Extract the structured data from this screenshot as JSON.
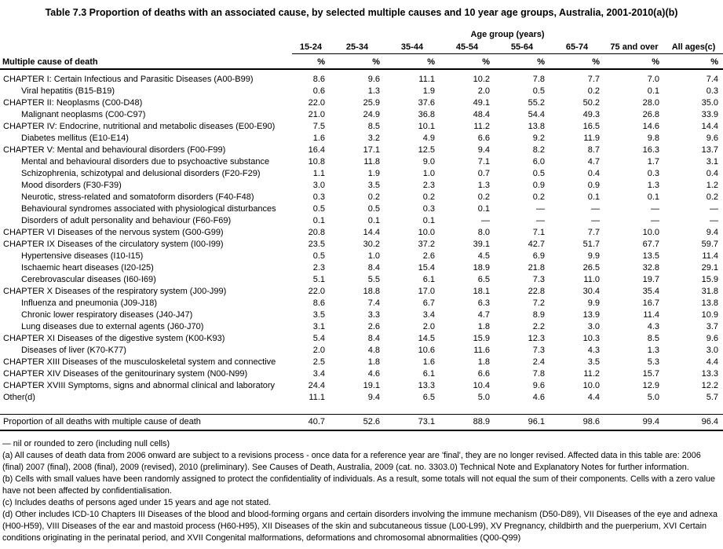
{
  "title": "Table 7.3 Proportion of deaths with an associated cause, by selected multiple causes and 10 year age groups, Australia, 2001-2010(a)(b)",
  "table": {
    "col_group_label": "Age group (years)",
    "row_header_label": "Multiple cause of death",
    "columns": [
      "15-24",
      "25-34",
      "35-44",
      "45-54",
      "55-64",
      "65-74",
      "75 and over",
      "All ages(c)"
    ],
    "unit_row": [
      "%",
      "%",
      "%",
      "%",
      "%",
      "%",
      "%",
      "%"
    ],
    "rows": [
      {
        "label": "CHAPTER I: Certain Infectious and Parasitic Diseases (A00-B99)",
        "indent": false,
        "values": [
          "8.6",
          "9.6",
          "11.1",
          "10.2",
          "7.8",
          "7.7",
          "7.0",
          "7.4"
        ]
      },
      {
        "label": "Viral hepatitis (B15-B19)",
        "indent": true,
        "values": [
          "0.6",
          "1.3",
          "1.9",
          "2.0",
          "0.5",
          "0.2",
          "0.1",
          "0.3"
        ]
      },
      {
        "label": "CHAPTER II: Neoplasms (C00-D48)",
        "indent": false,
        "values": [
          "22.0",
          "25.9",
          "37.6",
          "49.1",
          "55.2",
          "50.2",
          "28.0",
          "35.0"
        ]
      },
      {
        "label": "Malignant neoplasms (C00-C97)",
        "indent": true,
        "values": [
          "21.0",
          "24.9",
          "36.8",
          "48.4",
          "54.4",
          "49.3",
          "26.8",
          "33.9"
        ]
      },
      {
        "label": "CHAPTER IV: Endocrine, nutritional and metabolic diseases (E00-E90)",
        "indent": false,
        "values": [
          "7.5",
          "8.5",
          "10.1",
          "11.2",
          "13.8",
          "16.5",
          "14.6",
          "14.4"
        ]
      },
      {
        "label": "Diabetes mellitus (E10-E14)",
        "indent": true,
        "values": [
          "1.6",
          "3.2",
          "4.9",
          "6.6",
          "9.2",
          "11.9",
          "9.8",
          "9.6"
        ]
      },
      {
        "label": "CHAPTER V: Mental and behavioural disorders (F00-F99)",
        "indent": false,
        "values": [
          "16.4",
          "17.1",
          "12.5",
          "9.4",
          "8.2",
          "8.7",
          "16.3",
          "13.7"
        ]
      },
      {
        "label": "Mental and behavioural disorders due to psychoactive substance",
        "indent": true,
        "values": [
          "10.8",
          "11.8",
          "9.0",
          "7.1",
          "6.0",
          "4.7",
          "1.7",
          "3.1"
        ]
      },
      {
        "label": "Schizophrenia, schizotypal and delusional disorders (F20-F29)",
        "indent": true,
        "values": [
          "1.1",
          "1.9",
          "1.0",
          "0.7",
          "0.5",
          "0.4",
          "0.3",
          "0.4"
        ]
      },
      {
        "label": "Mood disorders (F30-F39)",
        "indent": true,
        "values": [
          "3.0",
          "3.5",
          "2.3",
          "1.3",
          "0.9",
          "0.9",
          "1.3",
          "1.2"
        ]
      },
      {
        "label": "Neurotic, stress-related and somatoform disorders (F40-F48)",
        "indent": true,
        "values": [
          "0.3",
          "0.2",
          "0.2",
          "0.2",
          "0.2",
          "0.1",
          "0.1",
          "0.2"
        ]
      },
      {
        "label": "Behavioural syndromes associated with physiological disturbances",
        "indent": true,
        "values": [
          "0.5",
          "0.5",
          "0.3",
          "0.1",
          "—",
          "—",
          "—",
          "—"
        ]
      },
      {
        "label": "Disorders of adult personality and behaviour (F60-F69)",
        "indent": true,
        "values": [
          "0.1",
          "0.1",
          "0.1",
          "—",
          "—",
          "—",
          "—",
          "—"
        ]
      },
      {
        "label": "CHAPTER VI Diseases of the nervous system (G00-G99)",
        "indent": false,
        "values": [
          "20.8",
          "14.4",
          "10.0",
          "8.0",
          "7.1",
          "7.7",
          "10.0",
          "9.4"
        ]
      },
      {
        "label": "CHAPTER IX Diseases of the circulatory system (I00-I99)",
        "indent": false,
        "values": [
          "23.5",
          "30.2",
          "37.2",
          "39.1",
          "42.7",
          "51.7",
          "67.7",
          "59.7"
        ]
      },
      {
        "label": "Hypertensive diseases (I10-I15)",
        "indent": true,
        "values": [
          "0.5",
          "1.0",
          "2.6",
          "4.5",
          "6.9",
          "9.9",
          "13.5",
          "11.4"
        ]
      },
      {
        "label": "Ischaemic heart diseases (I20-I25)",
        "indent": true,
        "values": [
          "2.3",
          "8.4",
          "15.4",
          "18.9",
          "21.8",
          "26.5",
          "32.8",
          "29.1"
        ]
      },
      {
        "label": "Cerebrovascular diseases (I60-I69)",
        "indent": true,
        "values": [
          "5.1",
          "5.5",
          "6.1",
          "6.5",
          "7.3",
          "11.0",
          "19.7",
          "15.9"
        ]
      },
      {
        "label": "CHAPTER X Diseases of the respiratory system (J00-J99)",
        "indent": false,
        "values": [
          "22.0",
          "18.8",
          "17.0",
          "18.1",
          "22.8",
          "30.4",
          "35.4",
          "31.8"
        ]
      },
      {
        "label": "Influenza and pneumonia (J09-J18)",
        "indent": true,
        "values": [
          "8.6",
          "7.4",
          "6.7",
          "6.3",
          "7.2",
          "9.9",
          "16.7",
          "13.8"
        ]
      },
      {
        "label": "Chronic lower respiratory diseases (J40-J47)",
        "indent": true,
        "values": [
          "3.5",
          "3.3",
          "3.4",
          "4.7",
          "8.9",
          "13.9",
          "11.4",
          "10.9"
        ]
      },
      {
        "label": "Lung diseases due to external agents (J60-J70)",
        "indent": true,
        "values": [
          "3.1",
          "2.6",
          "2.0",
          "1.8",
          "2.2",
          "3.0",
          "4.3",
          "3.7"
        ]
      },
      {
        "label": "CHAPTER XI Diseases of the digestive system (K00-K93)",
        "indent": false,
        "values": [
          "5.4",
          "8.4",
          "14.5",
          "15.9",
          "12.3",
          "10.3",
          "8.5",
          "9.6"
        ]
      },
      {
        "label": "Diseases of liver (K70-K77)",
        "indent": true,
        "values": [
          "2.0",
          "4.8",
          "10.6",
          "11.6",
          "7.3",
          "4.3",
          "1.3",
          "3.0"
        ]
      },
      {
        "label": "CHAPTER XIII Diseases of the musculoskeletal system and connective",
        "indent": false,
        "values": [
          "2.5",
          "1.8",
          "1.6",
          "1.8",
          "2.4",
          "3.5",
          "5.3",
          "4.4"
        ]
      },
      {
        "label": "CHAPTER XIV Diseases of the genitourinary system (N00-N99)",
        "indent": false,
        "values": [
          "3.4",
          "4.6",
          "6.1",
          "6.6",
          "7.8",
          "11.2",
          "15.7",
          "13.3"
        ]
      },
      {
        "label": "CHAPTER XVIII Symptoms, signs and abnormal clinical and laboratory",
        "indent": false,
        "values": [
          "24.4",
          "19.1",
          "13.3",
          "10.4",
          "9.6",
          "10.0",
          "12.9",
          "12.2"
        ]
      },
      {
        "label": "Other(d)",
        "indent": false,
        "values": [
          "11.1",
          "9.4",
          "6.5",
          "5.0",
          "4.6",
          "4.4",
          "5.0",
          "5.7"
        ]
      }
    ],
    "total_row": {
      "label": "Proportion of all deaths with multiple cause of death",
      "values": [
        "40.7",
        "52.6",
        "73.1",
        "88.9",
        "96.1",
        "98.6",
        "99.4",
        "96.4"
      ]
    }
  },
  "footnotes": [
    "— nil or rounded to zero (including null cells)",
    "(a) All causes of death data from 2006 onward are subject to a revisions process - once data for a reference year are 'final', they are no longer revised. Affected data in this table are: 2006 (final) 2007 (final), 2008 (final), 2009 (revised), 2010 (preliminary). See Causes of Death, Australia, 2009 (cat. no. 3303.0) Technical Note and Explanatory Notes for further information.",
    "(b) Cells with small values have been randomly assigned to protect the confidentiality of individuals. As a result, some totals will not equal the sum of their components. Cells with a zero value have not been affected by confidentialisation.",
    "(c) Includes deaths of persons aged under 15 years and age not stated.",
    "(d) Other includes ICD-10 Chapters III Diseases of the blood and blood-forming organs and certain disorders involving the immune mechanism (D50-D89), VII Diseases of the eye and adnexa (H00-H59), VIII Diseases of the ear and mastoid process (H60-H95), XII Diseases of the skin and subcutaneous tissue (L00-L99), XV Pregnancy, childbirth and the puerperium, XVI Certain conditions originating in the perinatal period, and XVII Congenital malformations, deformations and chromosomal abnormalities (Q00-Q99)"
  ]
}
